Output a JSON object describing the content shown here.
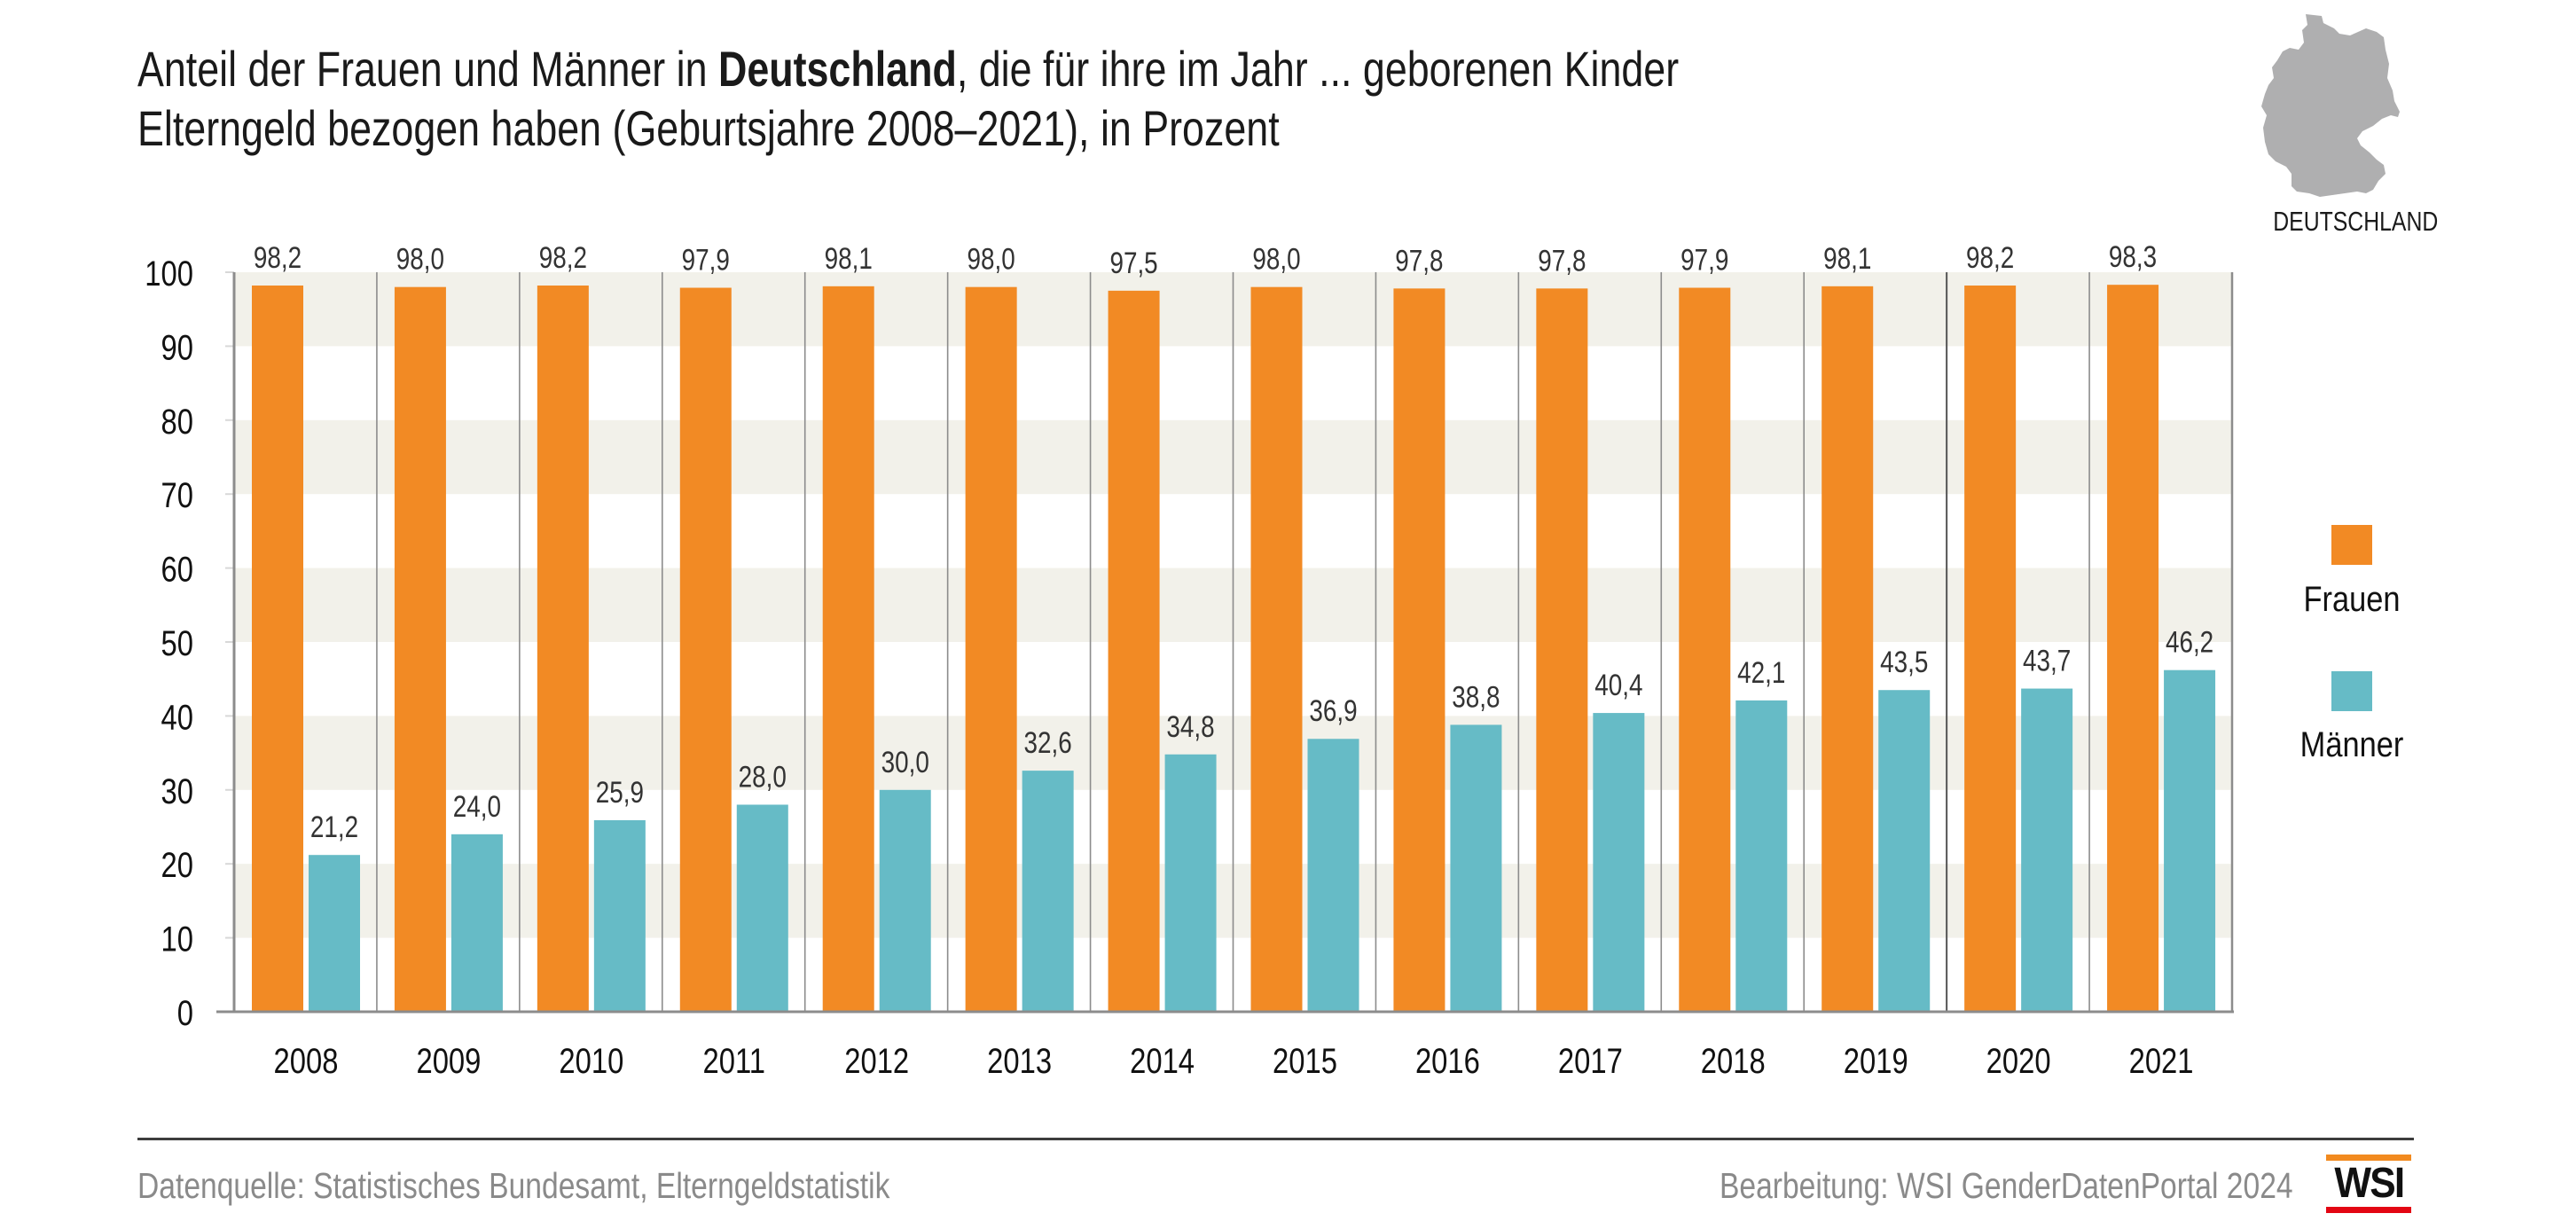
{
  "title": {
    "line1_before": "Anteil der Frauen und Männer in ",
    "line1_bold": "Deutschland",
    "line1_after": ", die für ihre im Jahr ... geborenen Kinder",
    "line2": "Elterngeld bezogen haben (Geburtsjahre 2008–2021), in Prozent"
  },
  "map": {
    "icon": "germany-map-icon",
    "label": "DEUTSCHLAND",
    "color": "#afafb0"
  },
  "colors": {
    "frauen": "#f28a24",
    "maenner": "#66bbc6",
    "band": "#f2f1ea",
    "axis": "#8c8c8c",
    "divider": "#8c8c8c"
  },
  "chart_data": {
    "type": "bar",
    "title": "Anteil der Frauen und Männer in Deutschland, die für ihre im Jahr ... geborenen Kinder Elterngeld bezogen haben (Geburtsjahre 2008–2021), in Prozent",
    "xlabel": "",
    "ylabel": "",
    "ylim": [
      0,
      100
    ],
    "yticks": [
      "0",
      "10",
      "20",
      "30",
      "40",
      "50",
      "60",
      "70",
      "80",
      "90",
      "100"
    ],
    "grid": "alternating horizontal bands every 10",
    "legend_position": "right",
    "categories": [
      "2008",
      "2009",
      "2010",
      "2011",
      "2012",
      "2013",
      "2014",
      "2015",
      "2016",
      "2017",
      "2018",
      "2019",
      "2020",
      "2021"
    ],
    "series": [
      {
        "name": "Frauen",
        "values": [
          98.2,
          98.0,
          98.2,
          97.9,
          98.1,
          98.0,
          97.5,
          98.0,
          97.8,
          97.8,
          97.9,
          98.1,
          98.2,
          98.3
        ],
        "labels": [
          "98,2",
          "98,0",
          "98,2",
          "97,9",
          "98,1",
          "98,0",
          "97,5",
          "98,0",
          "97,8",
          "97,8",
          "97,9",
          "98,1",
          "98,2",
          "98,3"
        ]
      },
      {
        "name": "Männer",
        "values": [
          21.2,
          24.0,
          25.9,
          28.0,
          30.0,
          32.6,
          34.8,
          36.9,
          38.8,
          40.4,
          42.1,
          43.5,
          43.7,
          46.2
        ],
        "labels": [
          "21,2",
          "24,0",
          "25,9",
          "28,0",
          "30,0",
          "32,6",
          "34,8",
          "36,9",
          "38,8",
          "40,4",
          "42,1",
          "43,5",
          "43,7",
          "46,2"
        ]
      }
    ]
  },
  "legend": {
    "items": [
      {
        "label": "Frauen"
      },
      {
        "label": "Männer"
      }
    ]
  },
  "footer": {
    "source": "Datenquelle: Statistisches Bundesamt, Elterngeldstatistik",
    "credit": "Bearbeitung: WSI GenderDatenPortal 2024",
    "logo_text": "WSI"
  }
}
